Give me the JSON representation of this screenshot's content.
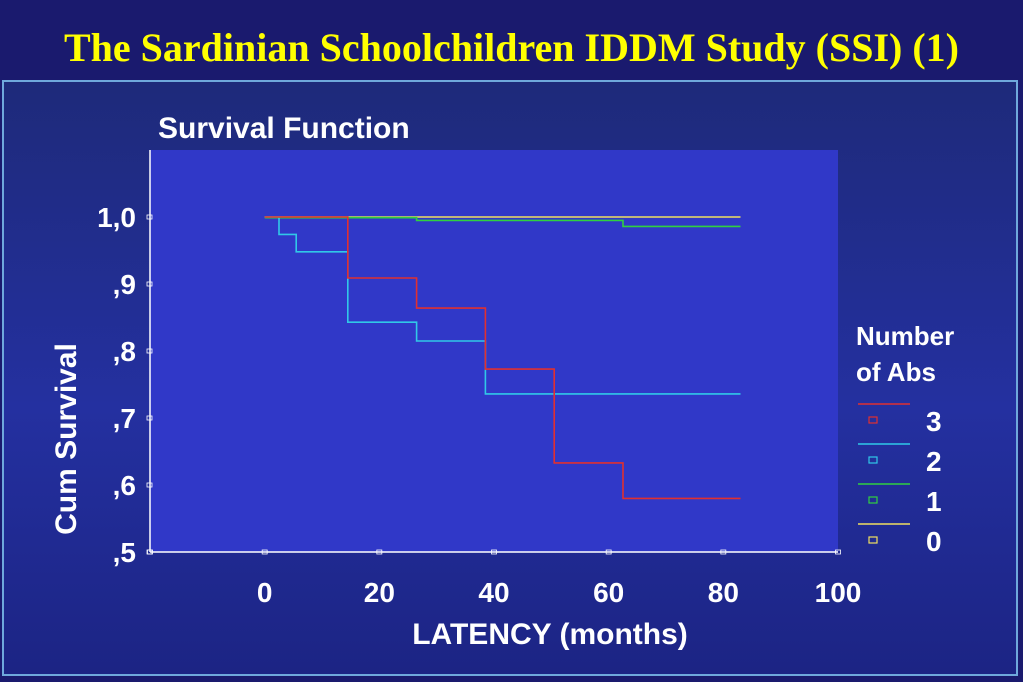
{
  "slide": {
    "title": "The Sardinian Schoolchildren IDDM Study (SSI) (1)"
  },
  "chart_data": {
    "type": "line",
    "step": true,
    "title": "Survival Function",
    "xlabel": "LATENCY (months)",
    "ylabel": "Cum Survival",
    "xlim": [
      -20,
      100
    ],
    "ylim": [
      0.5,
      1.1
    ],
    "xticks": [
      "0",
      "20",
      "40",
      "60",
      "80",
      "100"
    ],
    "yticks": [
      "1,0",
      ",9",
      ",8",
      ",7",
      ",6",
      ",5"
    ],
    "grid": false,
    "legend": {
      "title_line1": "Number",
      "title_line2": "of Abs",
      "position": "right"
    },
    "series": [
      {
        "name": "3",
        "color": "#e03030",
        "x": [
          0,
          14.5,
          14.5,
          26.5,
          26.5,
          38.5,
          38.5,
          50.5,
          50.5,
          62.5,
          62.5,
          83
        ],
        "y": [
          1.0,
          1.0,
          0.909,
          0.909,
          0.864,
          0.864,
          0.773,
          0.773,
          0.633,
          0.633,
          0.58,
          0.58
        ]
      },
      {
        "name": "2",
        "color": "#30c8e8",
        "x": [
          0,
          2.5,
          2.5,
          5.5,
          5.5,
          14.5,
          14.5,
          26.5,
          26.5,
          38.5,
          38.5,
          83
        ],
        "y": [
          1.0,
          1.0,
          0.974,
          0.974,
          0.948,
          0.948,
          0.843,
          0.843,
          0.815,
          0.815,
          0.736,
          0.736
        ]
      },
      {
        "name": "1",
        "color": "#30d040",
        "x": [
          0,
          26.5,
          26.5,
          62.5,
          62.5,
          83
        ],
        "y": [
          0.999,
          0.999,
          0.995,
          0.995,
          0.986,
          0.986
        ]
      },
      {
        "name": "0",
        "color": "#f0e060",
        "x": [
          0,
          83
        ],
        "y": [
          1.0,
          1.0
        ]
      }
    ]
  }
}
